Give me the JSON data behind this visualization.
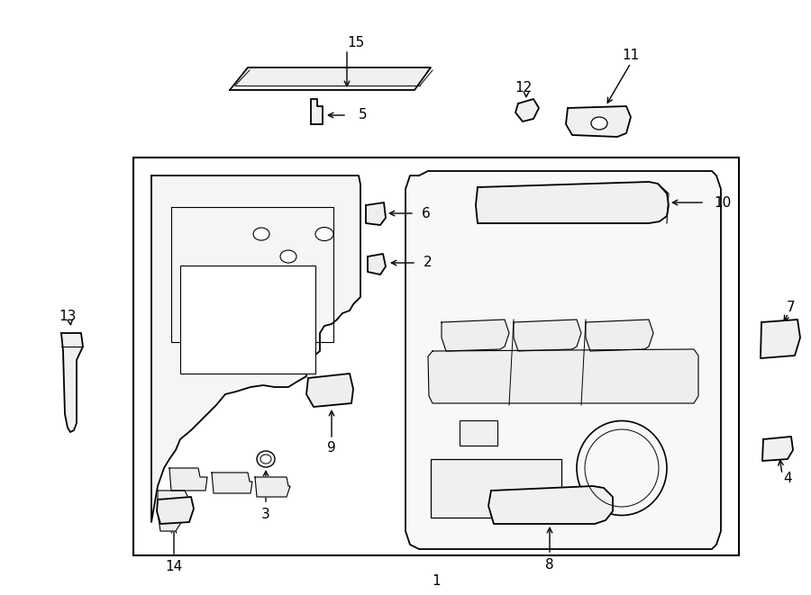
{
  "bg_color": "#ffffff",
  "line_color": "#000000",
  "fig_w": 9.0,
  "fig_h": 6.61,
  "dpi": 100
}
